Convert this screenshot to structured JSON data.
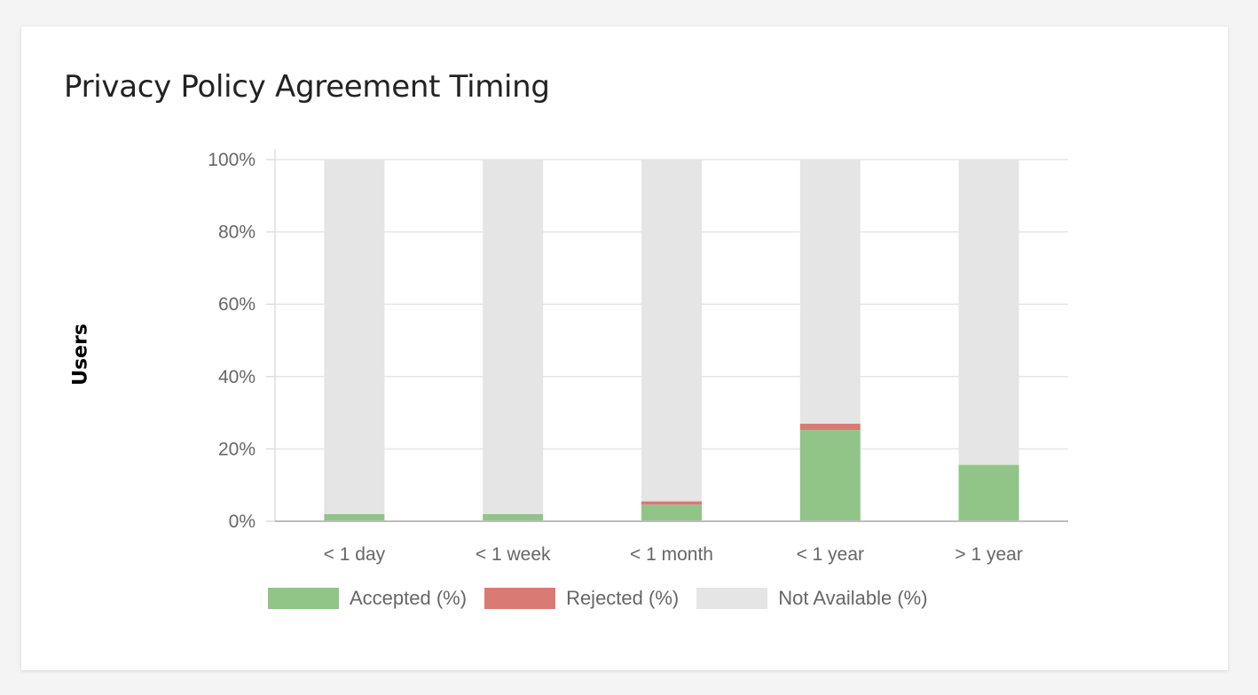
{
  "card": {
    "title": "Privacy Policy Agreement Timing"
  },
  "chart_data": {
    "type": "bar",
    "stacked": true,
    "categories": [
      "< 1 day",
      "< 1 week",
      "< 1 month",
      "< 1 year",
      "> 1 year"
    ],
    "series": [
      {
        "name": "Accepted (%)",
        "color": "#90c587",
        "values": [
          2,
          2,
          4.6,
          25.2,
          15.6
        ]
      },
      {
        "name": "Rejected (%)",
        "color": "#d97a74",
        "values": [
          0,
          0,
          0.9,
          1.8,
          0
        ]
      },
      {
        "name": "Not Available (%)",
        "color": "#e4e5e4",
        "values": [
          98,
          98,
          94.5,
          73,
          84.4
        ]
      }
    ],
    "ylabel": "Users",
    "xlabel": "",
    "ylim": [
      0,
      100
    ],
    "yticks": [
      0,
      20,
      40,
      60,
      80,
      100
    ],
    "ytick_labels": [
      "0%",
      "20%",
      "40%",
      "60%",
      "80%",
      "100%"
    ],
    "grid": true,
    "legend_position": "bottom"
  }
}
